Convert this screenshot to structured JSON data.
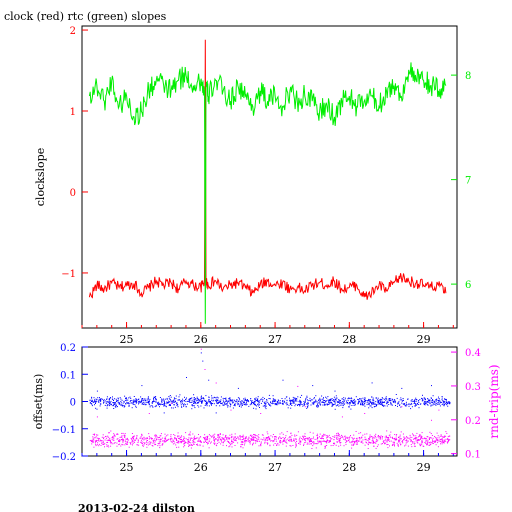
{
  "title": "clock (red) rtc (green) slopes",
  "footer": "2013-02-24 dilston",
  "colors": {
    "clock": "#ff0000",
    "rtc": "#00ee00",
    "offset": "#0000ff",
    "rndtrip": "#ff00ff",
    "frame": "#000000"
  },
  "chart_data": [
    {
      "type": "line",
      "title": "clock (red) rtc (green) slopes",
      "xlabel": "",
      "ylabel": "clockslope",
      "y2label": "",
      "xlim": [
        24.4,
        29.45
      ],
      "ylim": [
        -1.68,
        2.05
      ],
      "y2lim": [
        5.58,
        8.47
      ],
      "xticks": [
        25,
        26,
        27,
        28,
        29
      ],
      "yticks": [
        -1,
        0,
        1,
        2
      ],
      "y2ticks": [
        6,
        7,
        8
      ],
      "series": [
        {
          "name": "clock",
          "axis": "left",
          "x": [
            24.5,
            24.6,
            24.7,
            24.8,
            24.9,
            25.0,
            25.1,
            25.2,
            25.3,
            25.4,
            25.5,
            25.6,
            25.7,
            25.8,
            25.9,
            26.0,
            26.05,
            26.06,
            26.07,
            26.1,
            26.2,
            26.3,
            26.4,
            26.5,
            26.6,
            26.7,
            26.8,
            26.9,
            27.0,
            27.1,
            27.2,
            27.3,
            27.4,
            27.5,
            27.6,
            27.7,
            27.8,
            27.9,
            28.0,
            28.1,
            28.2,
            28.3,
            28.4,
            28.5,
            28.6,
            28.7,
            28.8,
            28.9,
            29.0,
            29.1,
            29.2,
            29.3
          ],
          "y": [
            -1.3,
            -1.15,
            -1.2,
            -1.12,
            -1.18,
            -1.15,
            -1.13,
            -1.25,
            -1.18,
            -1.1,
            -1.15,
            -1.12,
            -1.2,
            -1.1,
            -1.15,
            -1.18,
            -1.1,
            1.88,
            -1.1,
            -1.15,
            -1.1,
            -1.2,
            -1.15,
            -1.12,
            -1.18,
            -1.25,
            -1.15,
            -1.1,
            -1.15,
            -1.12,
            -1.2,
            -1.18,
            -1.22,
            -1.15,
            -1.12,
            -1.15,
            -1.1,
            -1.2,
            -1.18,
            -1.15,
            -1.3,
            -1.25,
            -1.15,
            -1.22,
            -1.12,
            -1.05,
            -1.1,
            -1.12,
            -1.15,
            -1.18,
            -1.15,
            -1.25
          ]
        },
        {
          "name": "rtc",
          "axis": "right",
          "x": [
            24.5,
            24.6,
            24.7,
            24.8,
            24.9,
            25.0,
            25.1,
            25.2,
            25.3,
            25.4,
            25.5,
            25.6,
            25.7,
            25.8,
            25.9,
            26.0,
            26.05,
            26.06,
            26.07,
            26.1,
            26.2,
            26.3,
            26.4,
            26.5,
            26.6,
            26.7,
            26.8,
            26.9,
            27.0,
            27.1,
            27.2,
            27.3,
            27.4,
            27.5,
            27.6,
            27.7,
            27.8,
            27.9,
            28.0,
            28.1,
            28.2,
            28.3,
            28.4,
            28.5,
            28.6,
            28.7,
            28.8,
            28.9,
            29.0,
            29.1,
            29.2,
            29.3
          ],
          "y": [
            7.8,
            7.9,
            7.75,
            7.95,
            7.7,
            7.8,
            7.6,
            7.65,
            7.85,
            7.95,
            7.9,
            7.85,
            7.95,
            8.0,
            7.9,
            7.95,
            7.85,
            5.62,
            7.9,
            7.8,
            7.95,
            7.85,
            7.75,
            7.9,
            7.8,
            7.7,
            7.85,
            7.75,
            7.8,
            7.7,
            7.85,
            7.75,
            7.8,
            7.75,
            7.65,
            7.7,
            7.6,
            7.75,
            7.8,
            7.7,
            7.75,
            7.8,
            7.7,
            7.85,
            7.9,
            7.8,
            8.05,
            7.95,
            7.95,
            7.9,
            7.85,
            7.9
          ]
        }
      ]
    },
    {
      "type": "scatter",
      "title": "",
      "xlabel": "",
      "ylabel": "offset(ms)",
      "y2label": "rnd-trip(ms)",
      "xlim": [
        24.4,
        29.45
      ],
      "ylim": [
        -0.2,
        0.2
      ],
      "y2lim": [
        0.093,
        0.415
      ],
      "xticks": [
        25,
        26,
        27,
        28,
        29
      ],
      "yticks": [
        -0.2,
        -0.1,
        0,
        0.1,
        0.2
      ],
      "y2ticks": [
        0.1,
        0.2,
        0.3,
        0.4
      ],
      "ytick_labels": [
        "−0.2",
        "−0.1",
        "0",
        "0.1",
        "0.2"
      ],
      "y2tick_labels": [
        "0.1",
        "0.2",
        "0.3",
        "0.4"
      ],
      "series": [
        {
          "name": "offset",
          "axis": "left",
          "x_range": [
            24.5,
            29.35
          ],
          "center": 0.0,
          "spread": 0.015,
          "count": 1400,
          "outliers": [
            [
              24.6,
              0.04
            ],
            [
              25.2,
              0.06
            ],
            [
              25.5,
              -0.04
            ],
            [
              25.8,
              0.09
            ],
            [
              26.0,
              0.18
            ],
            [
              26.02,
              0.15
            ],
            [
              26.1,
              0.08
            ],
            [
              26.2,
              -0.04
            ],
            [
              26.5,
              0.05
            ],
            [
              27.1,
              0.08
            ],
            [
              27.5,
              0.06
            ],
            [
              27.8,
              0.04
            ],
            [
              28.3,
              0.07
            ],
            [
              28.7,
              0.05
            ],
            [
              29.1,
              0.06
            ]
          ]
        },
        {
          "name": "rndtrip",
          "axis": "right",
          "x_range": [
            24.5,
            29.35
          ],
          "center": 0.142,
          "spread": 0.015,
          "count": 1400,
          "outliers": [
            [
              24.6,
              0.21
            ],
            [
              25.3,
              0.22
            ],
            [
              25.6,
              0.25
            ],
            [
              26.0,
              0.41
            ],
            [
              26.05,
              0.35
            ],
            [
              26.2,
              0.31
            ],
            [
              26.4,
              0.23
            ],
            [
              26.8,
              0.22
            ],
            [
              27.3,
              0.3
            ],
            [
              27.4,
              0.24
            ],
            [
              27.9,
              0.21
            ],
            [
              28.2,
              0.22
            ],
            [
              28.7,
              0.24
            ],
            [
              29.1,
              0.2
            ],
            [
              29.2,
              0.23
            ]
          ]
        }
      ]
    }
  ]
}
